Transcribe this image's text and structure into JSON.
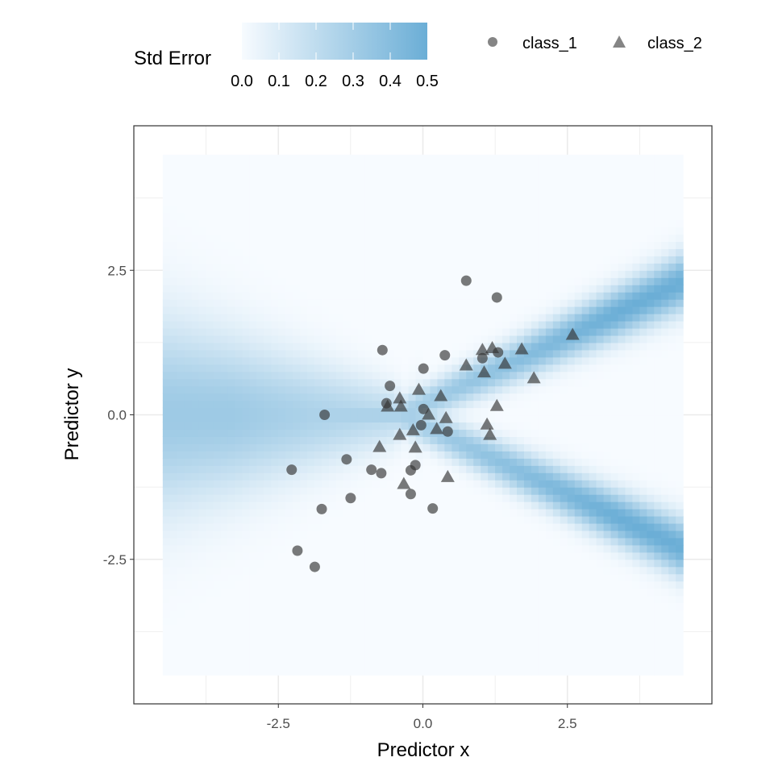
{
  "chart_data": {
    "type": "scatter",
    "xlabel": "Predictor x",
    "ylabel": "Predictor y",
    "xlim": [
      -5,
      5
    ],
    "ylim": [
      -5,
      5
    ],
    "x_ticks": [
      "-2.5",
      "0.0",
      "2.5"
    ],
    "x_tick_values": [
      -2.5,
      0,
      2.5
    ],
    "y_ticks": [
      "-2.5",
      "0.0",
      "2.5"
    ],
    "y_tick_values": [
      -2.5,
      0,
      2.5
    ],
    "grid": true,
    "background_heatmap": {
      "variable": "Std Error",
      "x_range": [
        -4.5,
        4.5
      ],
      "y_range": [
        -4.5,
        4.5
      ],
      "scale_limits": [
        0,
        0.5
      ],
      "low_color": "#f7fbff",
      "high_color": "#6baed6"
    },
    "color_legend": {
      "title": "Std Error",
      "labels": [
        "0.0",
        "0.1",
        "0.2",
        "0.3",
        "0.4",
        "0.5"
      ],
      "values": [
        0,
        0.1,
        0.2,
        0.3,
        0.4,
        0.5
      ],
      "placement": "top"
    },
    "shape_legend": {
      "placement": "top-right",
      "entries": [
        {
          "name": "class_1",
          "shape": "circle"
        },
        {
          "name": "class_2",
          "shape": "triangle"
        }
      ]
    },
    "point_color": "#333333",
    "point_alpha": 0.65,
    "series": [
      {
        "name": "class_1",
        "shape": "circle",
        "points": [
          [
            0.75,
            2.32
          ],
          [
            1.28,
            2.03
          ],
          [
            -0.7,
            1.12
          ],
          [
            0.38,
            1.03
          ],
          [
            1.03,
            0.98
          ],
          [
            1.3,
            1.08
          ],
          [
            0.01,
            0.8
          ],
          [
            -0.57,
            0.5
          ],
          [
            -0.63,
            0.2
          ],
          [
            -1.7,
            0.0
          ],
          [
            0.01,
            0.1
          ],
          [
            -0.03,
            -0.18
          ],
          [
            0.43,
            -0.29
          ],
          [
            -0.13,
            -0.87
          ],
          [
            -0.21,
            -0.96
          ],
          [
            -0.89,
            -0.95
          ],
          [
            -0.72,
            -1.01
          ],
          [
            -1.32,
            -0.77
          ],
          [
            -2.27,
            -0.95
          ],
          [
            -1.25,
            -1.44
          ],
          [
            -0.21,
            -1.37
          ],
          [
            0.17,
            -1.62
          ],
          [
            -1.75,
            -1.63
          ],
          [
            -2.17,
            -2.35
          ],
          [
            -1.87,
            -2.63
          ]
        ]
      },
      {
        "name": "class_2",
        "shape": "triangle",
        "points": [
          [
            2.59,
            1.38
          ],
          [
            1.71,
            1.13
          ],
          [
            1.03,
            1.12
          ],
          [
            1.2,
            1.15
          ],
          [
            0.75,
            0.85
          ],
          [
            1.42,
            0.88
          ],
          [
            1.06,
            0.73
          ],
          [
            1.92,
            0.63
          ],
          [
            -0.07,
            0.43
          ],
          [
            0.31,
            0.32
          ],
          [
            -0.4,
            0.28
          ],
          [
            -0.61,
            0.14
          ],
          [
            -0.38,
            0.14
          ],
          [
            1.28,
            0.15
          ],
          [
            0.1,
            0.0
          ],
          [
            0.4,
            -0.06
          ],
          [
            -0.17,
            -0.27
          ],
          [
            0.24,
            -0.25
          ],
          [
            1.11,
            -0.17
          ],
          [
            1.16,
            -0.35
          ],
          [
            -0.4,
            -0.35
          ],
          [
            -0.75,
            -0.56
          ],
          [
            -0.13,
            -0.57
          ],
          [
            0.43,
            -1.08
          ],
          [
            -0.33,
            -1.2
          ]
        ]
      }
    ]
  }
}
